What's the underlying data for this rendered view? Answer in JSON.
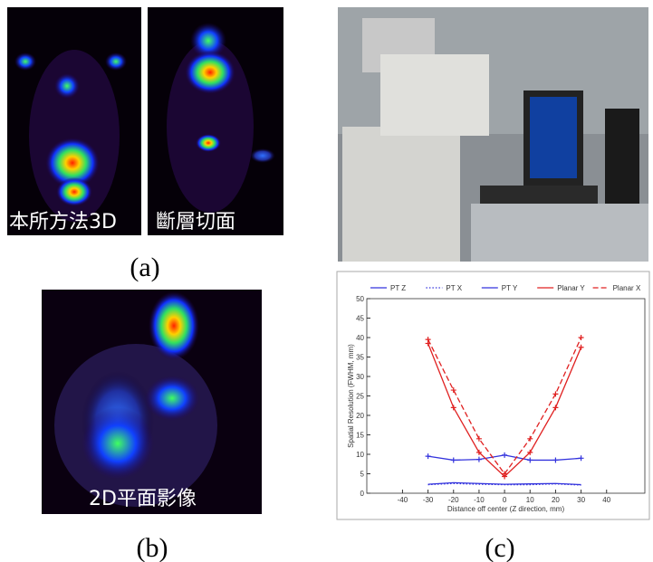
{
  "figure": {
    "panel_labels": [
      "(a)",
      "(b)",
      "(c)"
    ],
    "captions": [
      "本所方法3D",
      "斷層切面",
      "2D平面影像"
    ]
  },
  "chart_data": {
    "type": "line",
    "xlabel": "Distance off center (Z direction, mm)",
    "ylabel": "Spatial Resolution (FWHM, mm)",
    "x": [
      -30,
      -20,
      -10,
      0,
      10,
      20,
      30
    ],
    "xlim": [
      -54,
      55
    ],
    "xticks": [
      -40,
      -30,
      -20,
      -10,
      0,
      10,
      20,
      30,
      40
    ],
    "ylim": [
      0,
      50
    ],
    "yticks": [
      0,
      5,
      10,
      15,
      20,
      25,
      30,
      35,
      40,
      45,
      50
    ],
    "legend": "top",
    "series": [
      {
        "name": "PT Z",
        "color": "#3333dd",
        "linestyle": "solid",
        "marker": "plus",
        "values": [
          9.5,
          8.5,
          8.7,
          9.8,
          8.5,
          8.5,
          9.0
        ]
      },
      {
        "name": "PT X",
        "color": "#3333dd",
        "linestyle": "dotted",
        "marker": "none",
        "values": [
          2.2,
          2.5,
          2.3,
          2.2,
          2.2,
          2.4,
          2.1
        ]
      },
      {
        "name": "PT Y",
        "color": "#3333dd",
        "linestyle": "solid",
        "marker": "none",
        "values": [
          2.3,
          2.7,
          2.5,
          2.3,
          2.4,
          2.5,
          2.2
        ]
      },
      {
        "name": "Planar Y",
        "color": "#e02020",
        "linestyle": "solid",
        "marker": "plus",
        "values": [
          38.5,
          22,
          10.5,
          4.3,
          10.5,
          22,
          37.5
        ]
      },
      {
        "name": "Planar X",
        "color": "#e02020",
        "linestyle": "dashed",
        "marker": "plus",
        "values": [
          39.5,
          26.5,
          14,
          5,
          14,
          25.5,
          40
        ]
      }
    ]
  }
}
